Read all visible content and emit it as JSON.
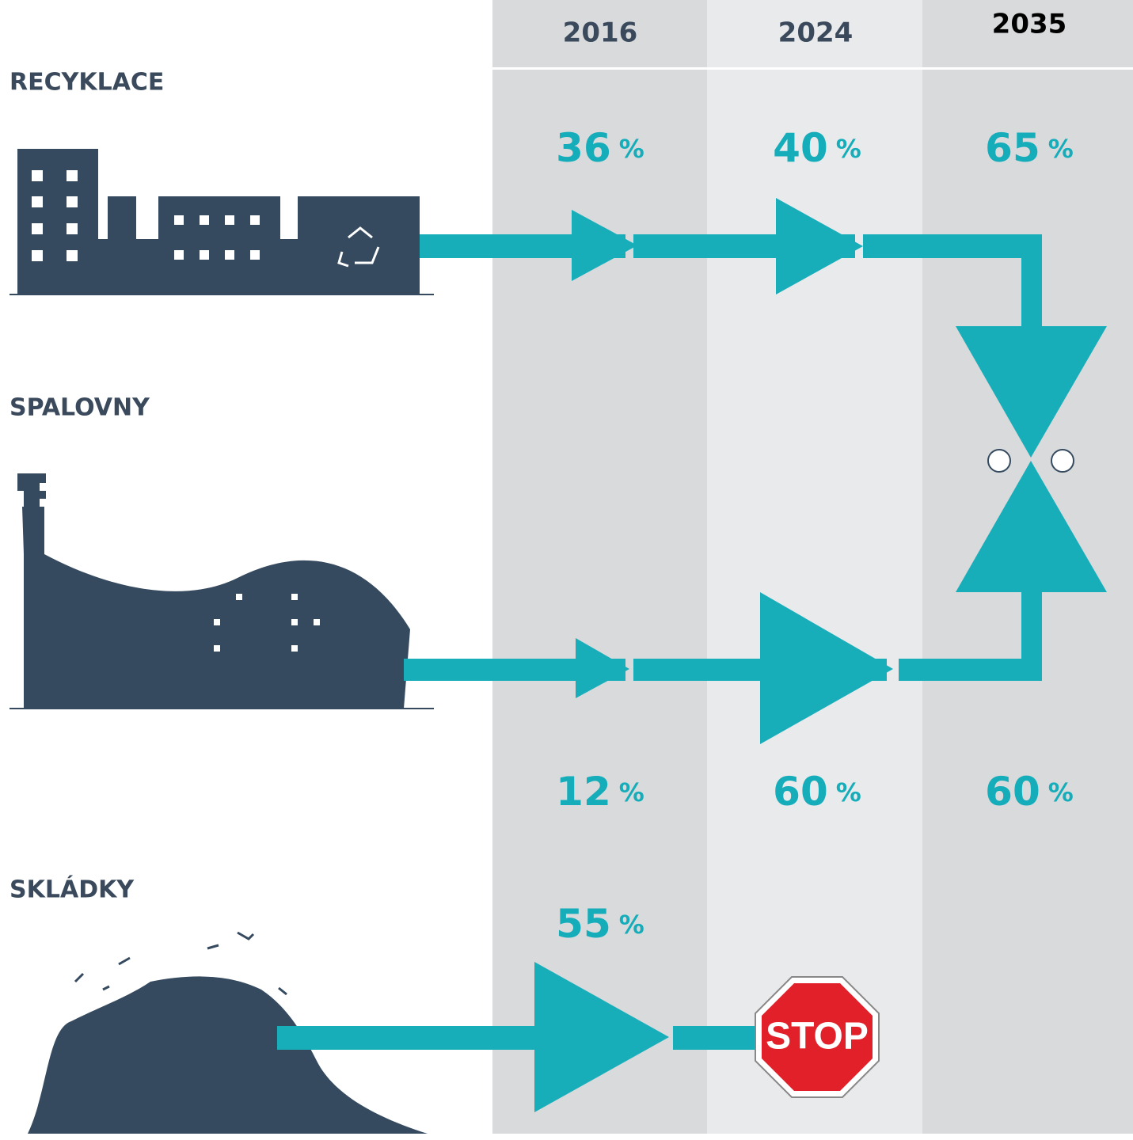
{
  "columns": [
    "2016",
    "2024",
    "2035"
  ],
  "rows": [
    {
      "label": "RECYKLACE",
      "values": [
        {
          "number": 36,
          "unit": "%"
        },
        {
          "number": 40,
          "unit": "%"
        },
        {
          "number": 65,
          "unit": "%"
        }
      ]
    },
    {
      "label": "SPALOVNY",
      "values": [
        {
          "number": 12,
          "unit": "%"
        },
        {
          "number": 60,
          "unit": "%"
        },
        {
          "number": 60,
          "unit": "%"
        }
      ]
    },
    {
      "label": "SKLÁDKY",
      "values": [
        {
          "number": 55,
          "unit": "%"
        }
      ]
    }
  ],
  "stop_sign": "STOP"
}
